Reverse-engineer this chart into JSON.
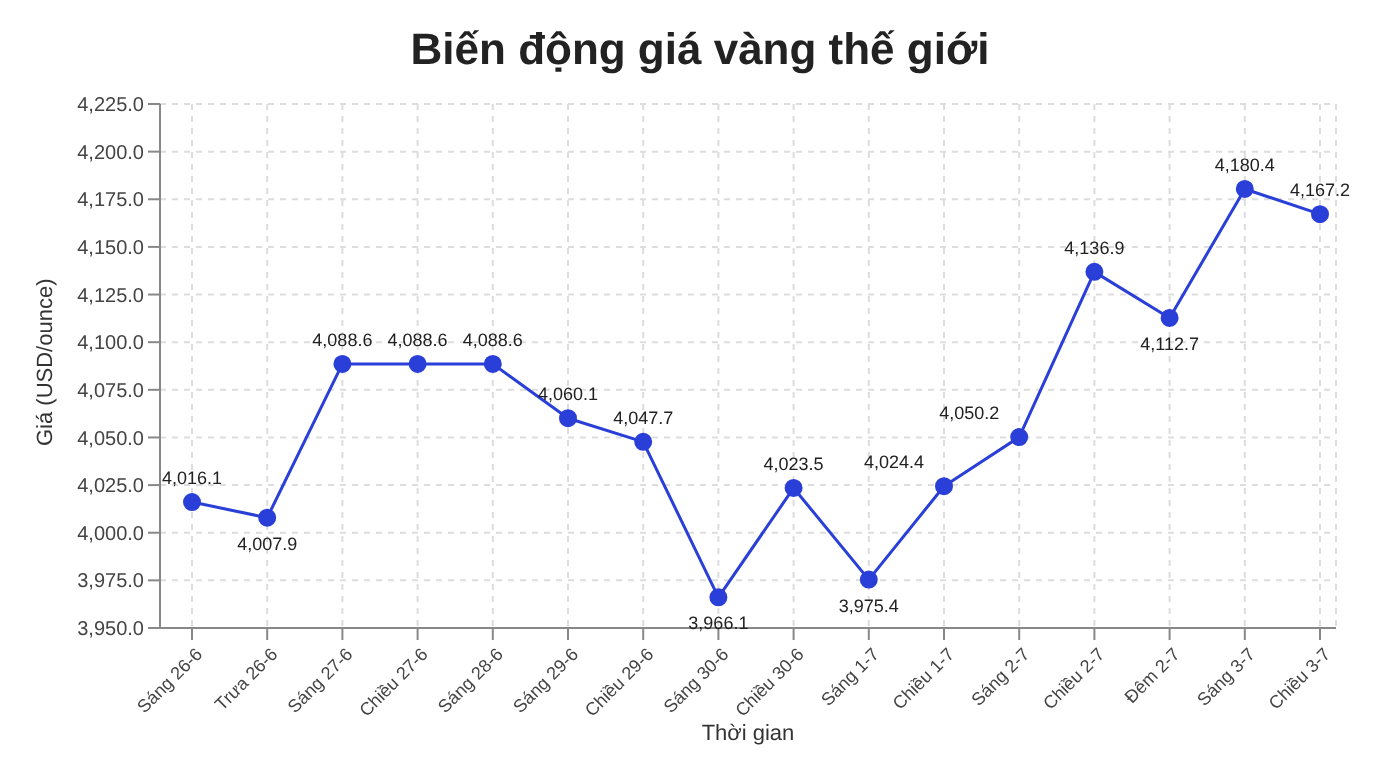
{
  "chart_data": {
    "type": "line",
    "title": "Biến động giá vàng thế giới",
    "xlabel": "Thời gian",
    "ylabel": "Giá (USD/ounce)",
    "categories": [
      "Sáng 26-6",
      "Trưa 26-6",
      "Sáng 27-6",
      "Chiều 27-6",
      "Sáng 28-6",
      "Sáng 29-6",
      "Chiều 29-6",
      "Sáng 30-6",
      "Chiều 30-6",
      "Sáng 1-7",
      "Chiều 1-7",
      "Sáng 2-7",
      "Chiều 2-7",
      "Đêm 2-7",
      "Sáng 3-7",
      "Chiều 3-7"
    ],
    "series": [
      {
        "color": "#2a3fd8",
        "values": [
          4016.1,
          4007.9,
          4088.6,
          4088.6,
          4088.6,
          4060.1,
          4047.7,
          3966.1,
          4023.5,
          3975.4,
          4024.4,
          4050.2,
          4136.9,
          4112.7,
          4180.4,
          4167.2
        ],
        "value_labels": [
          "4,016.1",
          "4,007.9",
          "4,088.6",
          "4,088.6",
          "4,088.6",
          "4,060.1",
          "4,047.7",
          "3,966.1",
          "4,023.5",
          "3,975.4",
          "4,024.4",
          "4,050.2",
          "4,136.9",
          "4,112.7",
          "4,180.4",
          "4,167.2"
        ]
      }
    ],
    "ylim": [
      3950,
      4225
    ],
    "yticks": [
      {
        "value": 3950,
        "label": "3,950.0"
      },
      {
        "value": 3975,
        "label": "3,975.0"
      },
      {
        "value": 4000,
        "label": "4,000.0"
      },
      {
        "value": 4025,
        "label": "4,025.0"
      },
      {
        "value": 4050,
        "label": "4,050.0"
      },
      {
        "value": 4075,
        "label": "4,075.0"
      },
      {
        "value": 4100,
        "label": "4,100.0"
      },
      {
        "value": 4125,
        "label": "4,125.0"
      },
      {
        "value": 4150,
        "label": "4,150.0"
      },
      {
        "value": 4175,
        "label": "4,175.0"
      },
      {
        "value": 4200,
        "label": "4,200.0"
      },
      {
        "value": 4225,
        "label": "4,225.0"
      }
    ],
    "grid": true,
    "marker": "circle",
    "line_style": "solid"
  }
}
